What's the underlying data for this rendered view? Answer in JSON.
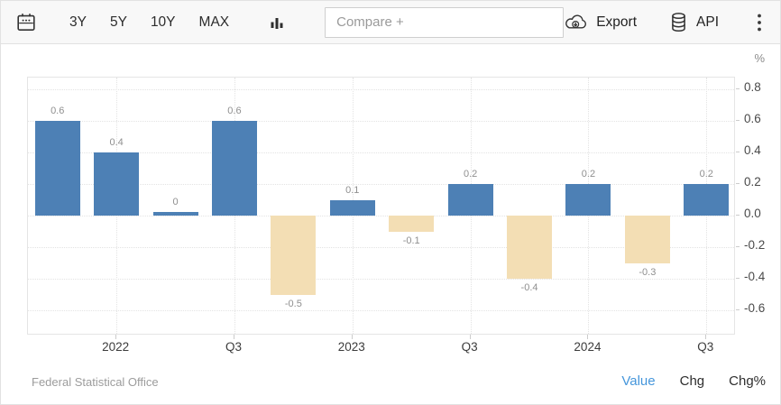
{
  "toolbar": {
    "ranges": [
      "3Y",
      "5Y",
      "10Y",
      "MAX"
    ],
    "compare_placeholder": "Compare +",
    "export_label": "Export",
    "api_label": "API"
  },
  "icons": {
    "calendar": "calendar-icon",
    "bar_chart": "bar-chart-icon",
    "export": "cloud-download-icon",
    "api": "database-icon",
    "menu": "vertical-dots-icon"
  },
  "chart_data": {
    "type": "bar",
    "title": "",
    "unit": "%",
    "values": [
      0.6,
      0.4,
      0,
      0.6,
      -0.5,
      0.1,
      -0.1,
      0.2,
      -0.4,
      0.2,
      -0.3,
      0.2
    ],
    "bar_labels": [
      "0.6",
      "0.4",
      "0",
      "0.6",
      "-0.5",
      "0.1",
      "-0.1",
      "0.2",
      "-0.4",
      "0.2",
      "-0.3",
      "0.2"
    ],
    "x_tick_labels": [
      "2022",
      "Q3",
      "2023",
      "Q3",
      "2024",
      "Q3"
    ],
    "x_tick_bar_indexes": [
      1,
      3,
      5,
      7,
      9,
      11
    ],
    "y_ticks": [
      0.8,
      0.6,
      0.4,
      0.2,
      0.0,
      -0.2,
      -0.4,
      -0.6
    ],
    "y_tick_labels": [
      "0.8",
      "0.6",
      "0.4",
      "0.2",
      "0.0",
      "-0.2",
      "-0.4",
      "-0.6"
    ],
    "ylim": [
      -0.76,
      0.875
    ],
    "grid": "dotted",
    "legend_position": "none",
    "bar_color_positive": "#4d80b5",
    "bar_color_negative": "#f3deb4"
  },
  "footer": {
    "source": "Federal Statistical Office",
    "views": [
      {
        "label": "Value",
        "active": true
      },
      {
        "label": "Chg",
        "active": false
      },
      {
        "label": "Chg%",
        "active": false
      }
    ],
    "active_color": "#4596db"
  }
}
